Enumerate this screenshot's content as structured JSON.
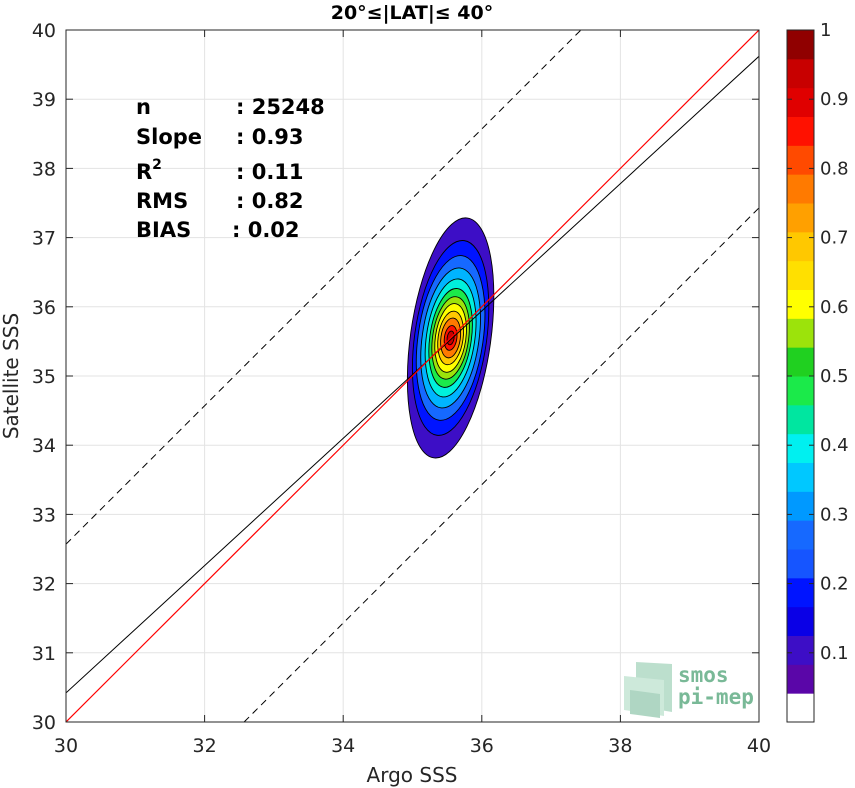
{
  "chart_data": {
    "type": "contour-density-scatter",
    "title": "20°≤|LAT|≤ 40°",
    "xlabel": "Argo SSS",
    "ylabel": "Satellite SSS",
    "xlim": [
      30,
      40
    ],
    "ylim": [
      30,
      40
    ],
    "xticks": [
      "30",
      "32",
      "34",
      "36",
      "38",
      "40"
    ],
    "yticks": [
      "30",
      "31",
      "32",
      "33",
      "34",
      "35",
      "36",
      "37",
      "38",
      "39",
      "40"
    ],
    "grid": true,
    "stats": [
      {
        "label": "n",
        "value": ": 25248"
      },
      {
        "label": "Slope",
        "value": ": 0.93"
      },
      {
        "label": "R",
        "sup": "2",
        "value": ": 0.11"
      },
      {
        "label": "RMS",
        "value": ": 0.82"
      },
      {
        "label": "BIAS",
        "value": ": 0.02"
      }
    ],
    "lines": {
      "one_to_one": {
        "color": "#ff0000",
        "from": [
          30,
          30
        ],
        "to": [
          40,
          40
        ]
      },
      "regression": {
        "color": "#000000",
        "from": [
          30,
          30.42
        ],
        "to": [
          40,
          39.62
        ]
      },
      "bounds": {
        "color": "#000000",
        "style": "dashed",
        "offset": 2.57
      }
    },
    "density_peak": {
      "x": 35.55,
      "y": 35.55
    },
    "contours": [
      {
        "level": 0.05,
        "rx": 0.58,
        "ry": 1.75,
        "color": "#3d0ec6"
      },
      {
        "level": 0.15,
        "rx": 0.52,
        "ry": 1.42,
        "color": "#0014ff"
      },
      {
        "level": 0.25,
        "rx": 0.47,
        "ry": 1.2,
        "color": "#1669ff"
      },
      {
        "level": 0.35,
        "rx": 0.41,
        "ry": 1.02,
        "color": "#00b4ff"
      },
      {
        "level": 0.45,
        "rx": 0.35,
        "ry": 0.86,
        "color": "#00f0dc"
      },
      {
        "level": 0.55,
        "rx": 0.3,
        "ry": 0.72,
        "color": "#1bea4a"
      },
      {
        "level": 0.6,
        "rx": 0.26,
        "ry": 0.6,
        "color": "#9ce30b"
      },
      {
        "level": 0.65,
        "rx": 0.22,
        "ry": 0.5,
        "color": "#ffff00"
      },
      {
        "level": 0.75,
        "rx": 0.18,
        "ry": 0.39,
        "color": "#ffc800"
      },
      {
        "level": 0.85,
        "rx": 0.14,
        "ry": 0.29,
        "color": "#ff7a00"
      },
      {
        "level": 0.95,
        "rx": 0.09,
        "ry": 0.18,
        "color": "#ff1100"
      },
      {
        "level": 1.0,
        "rx": 0.05,
        "ry": 0.1,
        "color": "#c80000"
      }
    ],
    "colorbar": {
      "range": [
        0,
        1
      ],
      "ticks": [
        "0.1",
        "0.2",
        "0.3",
        "0.4",
        "0.5",
        "0.6",
        "0.7",
        "0.8",
        "0.9",
        "1"
      ],
      "colors": [
        "#ffffff",
        "#5a06a8",
        "#3d0ec6",
        "#0a00e6",
        "#0014ff",
        "#1655ff",
        "#1669ff",
        "#0099ff",
        "#00c8ff",
        "#00f0f0",
        "#00e6a0",
        "#1bea4a",
        "#20d020",
        "#9ce30b",
        "#ffff00",
        "#ffe000",
        "#ffc800",
        "#ffa000",
        "#ff7a00",
        "#ff4a00",
        "#ff1100",
        "#e00000",
        "#c80000",
        "#900000"
      ]
    }
  },
  "logo": {
    "line1": "smos",
    "line2": "pi-mep"
  }
}
